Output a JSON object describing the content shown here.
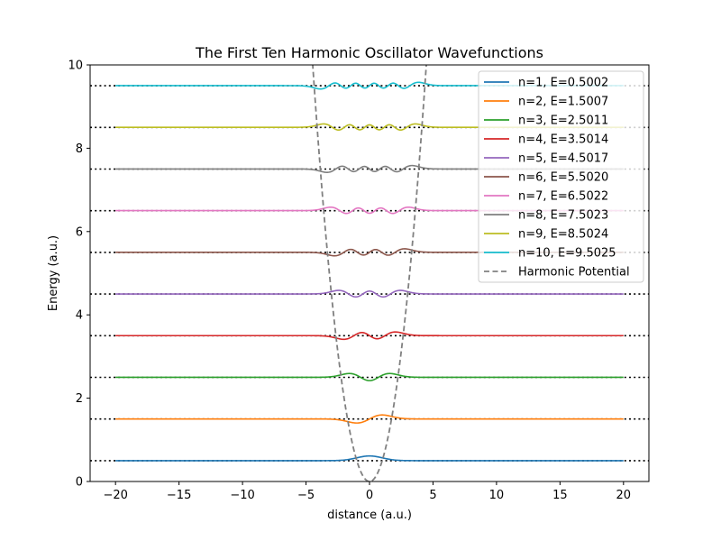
{
  "chart_data": {
    "type": "line",
    "title": "The First Ten Harmonic Oscillator Wavefunctions",
    "xlabel": "distance (a.u.)",
    "ylabel": "Energy (a.u.)",
    "xlim": [
      -22,
      22
    ],
    "ylim": [
      0,
      10
    ],
    "x_ticks": [
      -20,
      -15,
      -10,
      -5,
      0,
      5,
      10,
      15,
      20
    ],
    "x_tick_labels": [
      "−20",
      "−15",
      "−10",
      "−5",
      "0",
      "5",
      "10",
      "15",
      "20"
    ],
    "y_ticks": [
      0,
      2,
      4,
      6,
      8,
      10
    ],
    "y_tick_labels": [
      "0",
      "2",
      "4",
      "6",
      "8",
      "10"
    ],
    "grid": false,
    "legend_position": "top-right",
    "x_range": [
      -20,
      20
    ],
    "wavefunction_amplitude_scale": 0.15,
    "series": [
      {
        "name": "n=1, E=0.5002",
        "n": 1,
        "energy": 0.5002,
        "color": "#1f77b4"
      },
      {
        "name": "n=2, E=1.5007",
        "n": 2,
        "energy": 1.5007,
        "color": "#ff7f0e"
      },
      {
        "name": "n=3, E=2.5011",
        "n": 3,
        "energy": 2.5011,
        "color": "#2ca02c"
      },
      {
        "name": "n=4, E=3.5014",
        "n": 4,
        "energy": 3.5014,
        "color": "#d62728"
      },
      {
        "name": "n=5, E=4.5017",
        "n": 5,
        "energy": 4.5017,
        "color": "#9467bd"
      },
      {
        "name": "n=6, E=5.5020",
        "n": 6,
        "energy": 5.502,
        "color": "#8c564b"
      },
      {
        "name": "n=7, E=6.5022",
        "n": 7,
        "energy": 6.5022,
        "color": "#e377c2"
      },
      {
        "name": "n=8, E=7.5023",
        "n": 8,
        "energy": 7.5023,
        "color": "#7f7f7f"
      },
      {
        "name": "n=9, E=8.5024",
        "n": 9,
        "energy": 8.5024,
        "color": "#bcbd22"
      },
      {
        "name": "n=10, E=9.5025",
        "n": 10,
        "energy": 9.5025,
        "color": "#17becf"
      }
    ],
    "potential": {
      "name": "Harmonic Potential",
      "formula": "V(x) = 0.5 x^2",
      "color": "#808080",
      "style": "dashed"
    },
    "energy_level_lines": {
      "style": "dotted",
      "color": "#000000",
      "levels": [
        0.5,
        1.5,
        2.5,
        3.5,
        4.5,
        5.5,
        6.5,
        7.5,
        8.5,
        9.5
      ]
    }
  }
}
